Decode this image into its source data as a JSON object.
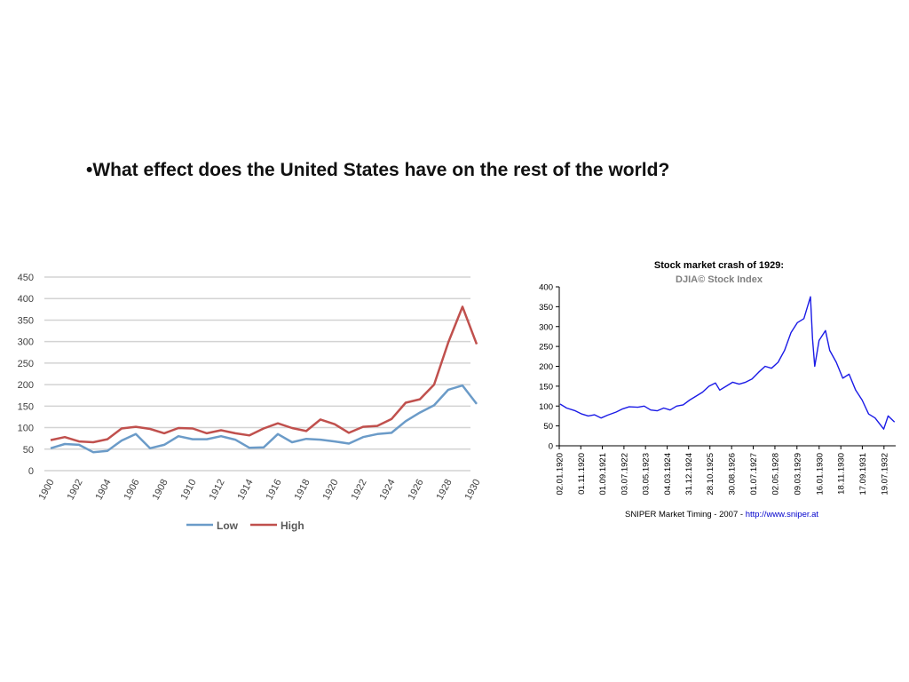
{
  "slide": {
    "question": "•What effect does the United States have on the rest of the world?"
  },
  "colors": {
    "low": "#6b9bc8",
    "high": "#c0504d",
    "djia": "#1a1ae6",
    "grid": "#d3d3d3",
    "link": "#0000cc"
  },
  "chart_data": [
    {
      "type": "line",
      "title": "",
      "xlabel": "",
      "ylabel": "",
      "ylim": [
        0,
        450
      ],
      "yticks": [
        0,
        50,
        100,
        150,
        200,
        250,
        300,
        350,
        400,
        450
      ],
      "xticks": [
        "1900",
        "1902",
        "1904",
        "1906",
        "1908",
        "1910",
        "1912",
        "1914",
        "1916",
        "1918",
        "1920",
        "1922",
        "1924",
        "1926",
        "1928",
        "1930"
      ],
      "grid": true,
      "legend": "bottom",
      "x": [
        1900,
        1901,
        1902,
        1903,
        1904,
        1905,
        1906,
        1907,
        1908,
        1909,
        1910,
        1911,
        1912,
        1913,
        1914,
        1915,
        1916,
        1917,
        1918,
        1919,
        1920,
        1921,
        1922,
        1923,
        1924,
        1925,
        1926,
        1927,
        1928,
        1929,
        1930
      ],
      "series": [
        {
          "name": "Low",
          "values": [
            52,
            62,
            60,
            43,
            46,
            70,
            85,
            52,
            60,
            80,
            73,
            73,
            80,
            72,
            53,
            54,
            85,
            66,
            74,
            72,
            68,
            63,
            78,
            85,
            88,
            115,
            135,
            152,
            188,
            198,
            155
          ]
        },
        {
          "name": "High",
          "values": [
            71,
            78,
            68,
            66,
            73,
            98,
            102,
            97,
            87,
            99,
            98,
            87,
            94,
            87,
            82,
            98,
            110,
            99,
            92,
            119,
            108,
            88,
            102,
            104,
            120,
            158,
            166,
            200,
            298,
            381,
            294
          ]
        }
      ]
    },
    {
      "type": "line",
      "title": "Stock market crash of 1929:",
      "subtitle": "DJIA© Stock Index",
      "xlabel": "",
      "ylabel": "",
      "ylim": [
        0,
        400
      ],
      "yticks": [
        0,
        50,
        100,
        150,
        200,
        250,
        300,
        350,
        400
      ],
      "xticks": [
        "02.01.1920",
        "01.11.1920",
        "01.09.1921",
        "03.07.1922",
        "03.05.1923",
        "04.03.1924",
        "31.12.1924",
        "28.10.1925",
        "30.08.1926",
        "01.07.1927",
        "02.05.1928",
        "09.03.1929",
        "16.01.1930",
        "18.11.1930",
        "17.09.1931",
        "19.07.1932"
      ],
      "grid": false,
      "credit": "SNIPER Market Timing - 2007 - ",
      "credit_link": "http://www.sniper.at",
      "series": [
        {
          "name": "DJIA",
          "x": [
            "1920-01",
            "1920-04",
            "1920-08",
            "1920-11",
            "1921-02",
            "1921-05",
            "1921-08",
            "1921-11",
            "1922-03",
            "1922-06",
            "1922-09",
            "1923-01",
            "1923-04",
            "1923-07",
            "1923-10",
            "1924-01",
            "1924-04",
            "1924-07",
            "1924-10",
            "1925-01",
            "1925-04",
            "1925-07",
            "1925-10",
            "1926-01",
            "1926-03",
            "1926-06",
            "1926-09",
            "1926-12",
            "1927-03",
            "1927-06",
            "1927-09",
            "1927-12",
            "1928-03",
            "1928-06",
            "1928-09",
            "1928-12",
            "1929-03",
            "1929-06",
            "1929-09",
            "1929-10",
            "1929-11",
            "1930-01",
            "1930-04",
            "1930-06",
            "1930-09",
            "1930-12",
            "1931-03",
            "1931-06",
            "1931-09",
            "1931-12",
            "1932-03",
            "1932-07",
            "1932-09",
            "1932-12"
          ],
          "values": [
            105,
            95,
            88,
            80,
            75,
            78,
            70,
            77,
            85,
            93,
            98,
            97,
            100,
            90,
            88,
            95,
            90,
            100,
            103,
            115,
            125,
            135,
            150,
            158,
            140,
            150,
            160,
            155,
            160,
            168,
            185,
            200,
            195,
            210,
            240,
            285,
            310,
            320,
            375,
            270,
            200,
            265,
            290,
            240,
            210,
            170,
            180,
            140,
            115,
            80,
            70,
            42,
            75,
            60
          ]
        }
      ]
    }
  ]
}
